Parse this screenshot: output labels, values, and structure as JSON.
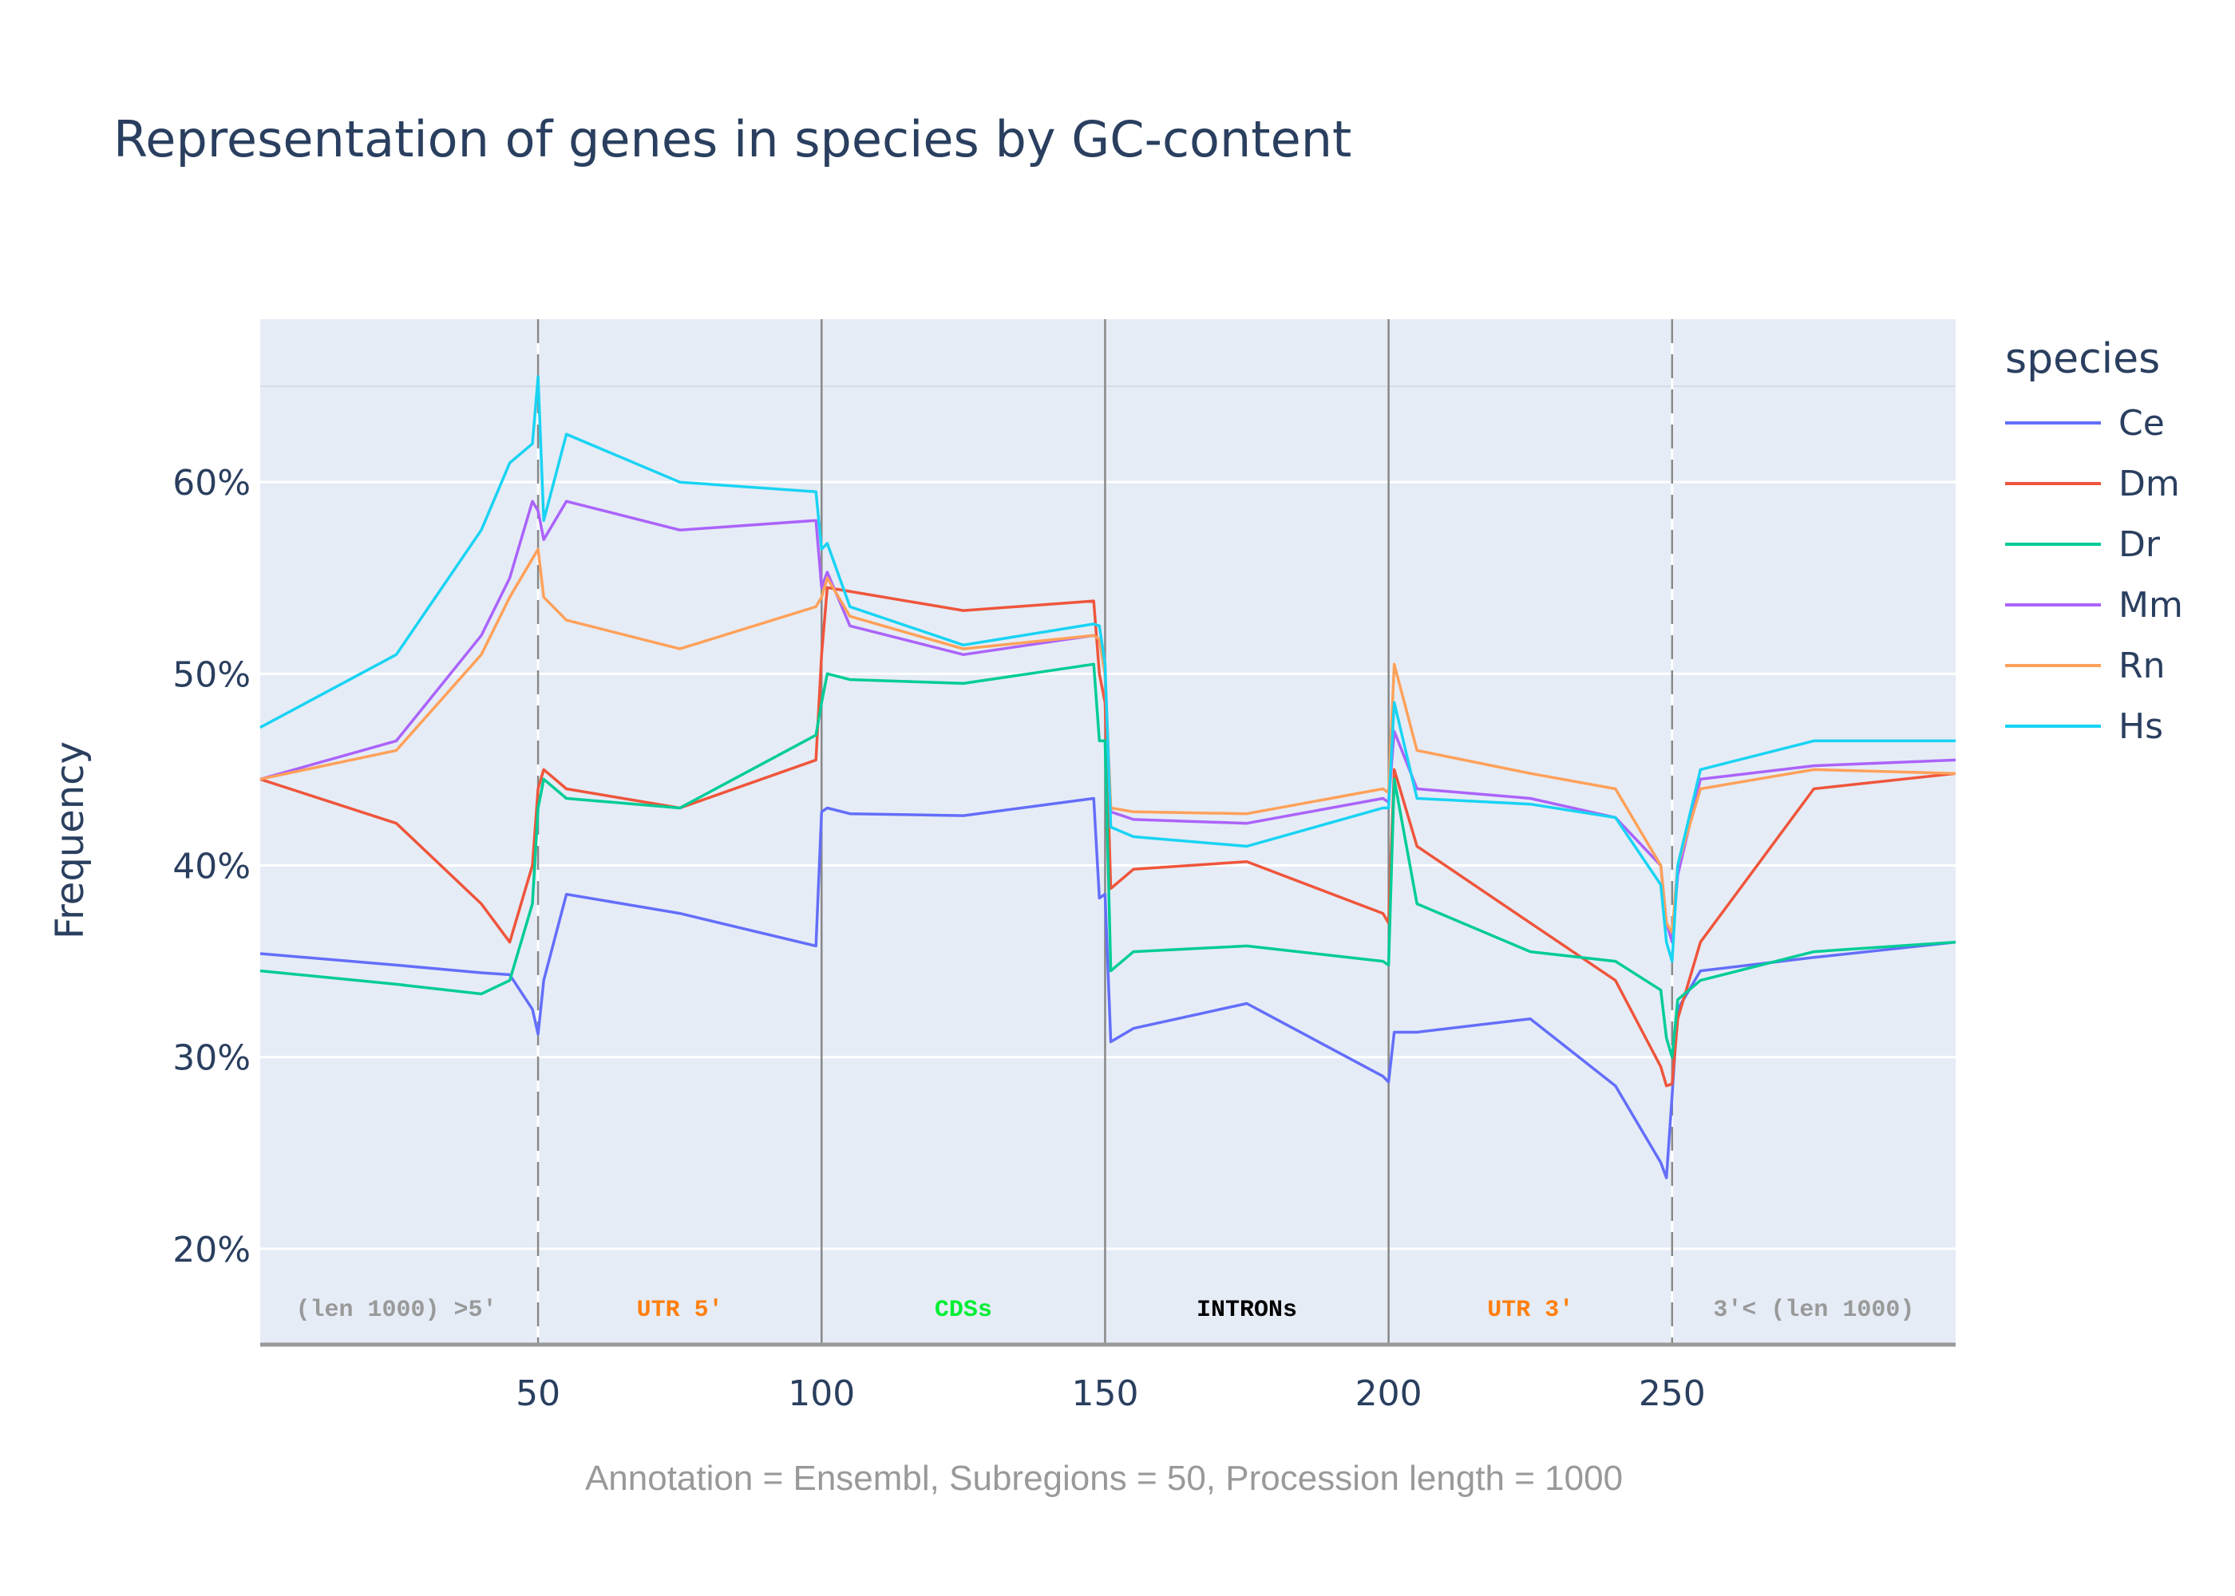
{
  "title": "Representation of genes in species by GC-content",
  "ylabel": "Frequency",
  "subtitle": "Annotation = Ensembl, Subregions = 50, Procession length = 1000",
  "legend": {
    "title": "species",
    "items": [
      {
        "label": "Ce",
        "color": "#636efa"
      },
      {
        "label": "Dm",
        "color": "#ef553b"
      },
      {
        "label": "Dr",
        "color": "#00cc96"
      },
      {
        "label": "Mm",
        "color": "#ab63fa"
      },
      {
        "label": "Rn",
        "color": "#ffa15a"
      },
      {
        "label": "Hs",
        "color": "#19d3f3"
      }
    ]
  },
  "chart_data": {
    "type": "line",
    "title": "Representation of genes in species by GC-content",
    "xlabel": "",
    "ylabel": "Frequency",
    "xlim": [
      1,
      300
    ],
    "ylim": [
      15,
      68.5
    ],
    "x_ticks": [
      50,
      100,
      150,
      200,
      250
    ],
    "y_ticks": [
      20,
      30,
      40,
      50,
      60
    ],
    "y_tick_labels": [
      "20%",
      "30%",
      "40%",
      "50%",
      "60%"
    ],
    "reference_line_y": 65,
    "region_boundaries": [
      {
        "x": 50,
        "style": "dashed"
      },
      {
        "x": 100,
        "style": "solid"
      },
      {
        "x": 150,
        "style": "solid"
      },
      {
        "x": 200,
        "style": "solid"
      },
      {
        "x": 250,
        "style": "dashed"
      }
    ],
    "region_labels": [
      {
        "text": "(len 1000) >5'",
        "x": 25,
        "color": "#999999"
      },
      {
        "text": "UTR 5'",
        "x": 75,
        "color": "#ff7f0e"
      },
      {
        "text": "CDSs",
        "x": 125,
        "color": "#00ee33"
      },
      {
        "text": "INTRONs",
        "x": 175,
        "color": "#000000"
      },
      {
        "text": "UTR 3'",
        "x": 225,
        "color": "#ff7f0e"
      },
      {
        "text": "3'< (len 1000)",
        "x": 275,
        "color": "#999999"
      }
    ],
    "x": [
      1,
      25,
      40,
      45,
      49,
      50,
      51,
      55,
      75,
      99,
      100,
      101,
      105,
      125,
      148,
      149,
      150,
      151,
      155,
      175,
      199,
      200,
      201,
      205,
      225,
      240,
      248,
      249,
      250,
      251,
      255,
      275,
      300
    ],
    "series": [
      {
        "name": "Ce",
        "color": "#636efa",
        "values": [
          35.4,
          34.8,
          34.4,
          34.3,
          32.5,
          31.2,
          34.0,
          38.5,
          37.5,
          35.8,
          42.8,
          43.0,
          42.7,
          42.6,
          43.5,
          38.3,
          38.5,
          30.8,
          31.5,
          32.8,
          29.0,
          28.7,
          31.3,
          31.3,
          32.0,
          28.5,
          24.5,
          23.7,
          28.0,
          32.5,
          34.5,
          35.2,
          36.0
        ]
      },
      {
        "name": "Dm",
        "color": "#ef553b",
        "values": [
          44.5,
          42.2,
          38.0,
          36.0,
          40.0,
          44.0,
          45.0,
          44.0,
          43.0,
          45.5,
          51.0,
          54.5,
          54.3,
          53.3,
          53.8,
          50.0,
          48.5,
          38.8,
          39.8,
          40.2,
          37.5,
          37.0,
          45.0,
          41.0,
          37.0,
          34.0,
          29.5,
          28.5,
          28.6,
          32.0,
          36.0,
          44.0,
          44.8
        ]
      },
      {
        "name": "Dr",
        "color": "#00cc96",
        "values": [
          34.5,
          33.8,
          33.3,
          34.0,
          38.0,
          43.0,
          44.5,
          43.5,
          43.0,
          46.8,
          48.5,
          50.0,
          49.7,
          49.5,
          50.5,
          46.5,
          46.5,
          34.5,
          35.5,
          35.8,
          35.0,
          34.8,
          44.5,
          38.0,
          35.5,
          35.0,
          33.5,
          31.0,
          30.0,
          33.0,
          34.0,
          35.5,
          36.0
        ]
      },
      {
        "name": "Mm",
        "color": "#ab63fa",
        "values": [
          44.5,
          46.5,
          52.0,
          55.0,
          59.0,
          58.5,
          57.0,
          59.0,
          57.5,
          58.0,
          54.5,
          55.3,
          52.5,
          51.0,
          52.0,
          51.8,
          50.0,
          42.8,
          42.4,
          42.2,
          43.5,
          43.3,
          47.0,
          44.0,
          43.5,
          42.5,
          40.0,
          37.0,
          36.0,
          39.5,
          44.5,
          45.2,
          45.5
        ]
      },
      {
        "name": "Rn",
        "color": "#ffa15a",
        "values": [
          44.5,
          46.0,
          51.0,
          54.0,
          56.0,
          56.5,
          54.0,
          52.8,
          51.3,
          53.5,
          54.0,
          55.0,
          53.0,
          51.3,
          52.0,
          51.8,
          50.0,
          43.0,
          42.8,
          42.7,
          44.0,
          43.8,
          50.5,
          46.0,
          44.8,
          44.0,
          40.0,
          37.0,
          36.5,
          40.0,
          44.0,
          45.0,
          44.8
        ]
      },
      {
        "name": "Hs",
        "color": "#19d3f3",
        "values": [
          47.2,
          51.0,
          57.5,
          61.0,
          62.0,
          65.5,
          58.0,
          62.5,
          60.0,
          59.5,
          56.5,
          56.8,
          53.5,
          51.5,
          52.6,
          52.5,
          50.5,
          42.0,
          41.5,
          41.0,
          43.0,
          43.0,
          48.5,
          43.5,
          43.2,
          42.5,
          39.0,
          36.0,
          35.0,
          40.0,
          45.0,
          46.5,
          46.5
        ]
      }
    ]
  }
}
